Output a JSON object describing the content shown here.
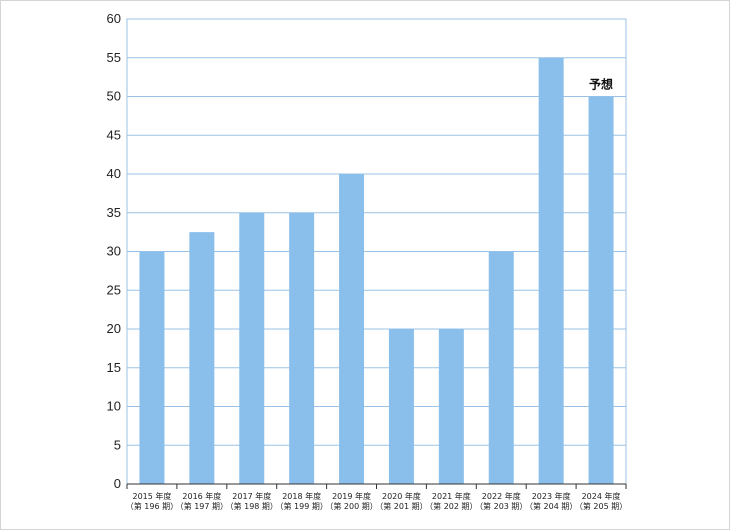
{
  "chart_data": {
    "type": "bar",
    "title": "",
    "xlabel": "",
    "ylabel": "",
    "ylim": [
      0,
      60
    ],
    "y_ticks": [
      0,
      5,
      10,
      15,
      20,
      25,
      30,
      35,
      40,
      45,
      50,
      55,
      60
    ],
    "grid": true,
    "categories": [
      {
        "year": "2015 年度",
        "term": "（第 196 期）"
      },
      {
        "year": "2016 年度",
        "term": "（第 197 期）"
      },
      {
        "year": "2017 年度",
        "term": "（第 198 期）"
      },
      {
        "year": "2018 年度",
        "term": "（第 199 期）"
      },
      {
        "year": "2019 年度",
        "term": "（第 200 期）"
      },
      {
        "year": "2020 年度",
        "term": "（第 201 期）"
      },
      {
        "year": "2021 年度",
        "term": "（第 202 期）"
      },
      {
        "year": "2022 年度",
        "term": "（第 203 期）"
      },
      {
        "year": "2023 年度",
        "term": "（第 204 期）"
      },
      {
        "year": "2024 年度",
        "term": "（第 205 期）"
      }
    ],
    "values": [
      30,
      32.5,
      35,
      35,
      40,
      20,
      20,
      30,
      55,
      50
    ],
    "bar_color": "#8abfec",
    "annotations": [
      {
        "category_index": 9,
        "text": "予想"
      }
    ]
  }
}
